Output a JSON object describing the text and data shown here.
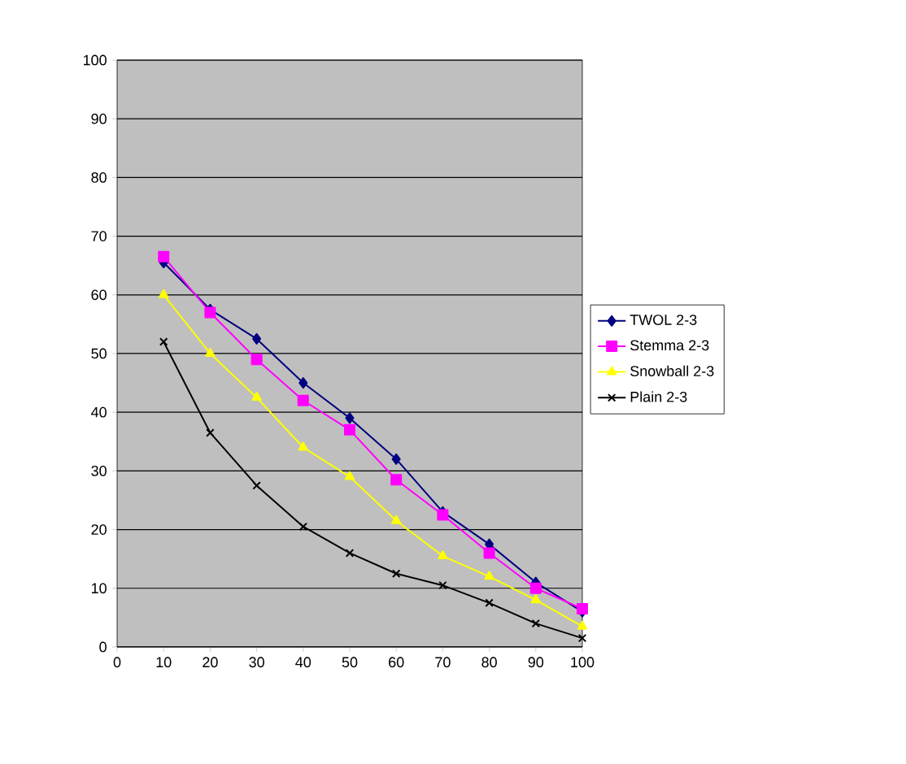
{
  "chart_data": {
    "type": "line",
    "x": [
      10,
      20,
      30,
      40,
      50,
      60,
      70,
      80,
      90,
      100
    ],
    "xlim": [
      0,
      100
    ],
    "ylim": [
      0,
      100
    ],
    "xticks": [
      0,
      10,
      20,
      30,
      40,
      50,
      60,
      70,
      80,
      90,
      100
    ],
    "yticks": [
      0,
      10,
      20,
      30,
      40,
      50,
      60,
      70,
      80,
      90,
      100
    ],
    "grid": "y",
    "legend": "right",
    "line_style": "solid",
    "series": [
      {
        "name": "TWOL 2-3",
        "color": "#000080",
        "marker": "diamond",
        "values": [
          65.5,
          57.5,
          52.5,
          45,
          39,
          32,
          23,
          17.5,
          11,
          6
        ]
      },
      {
        "name": "Stemma 2-3",
        "color": "#ff00ff",
        "marker": "square",
        "values": [
          66.5,
          57,
          49,
          42,
          37,
          28.5,
          22.5,
          16,
          10,
          6.5
        ]
      },
      {
        "name": "Snowball 2-3",
        "color": "#ffff00",
        "marker": "triangle",
        "values": [
          60,
          50,
          42.5,
          34,
          29,
          21.5,
          15.5,
          12,
          8,
          3.5
        ]
      },
      {
        "name": "Plain 2-3",
        "color": "#000000",
        "marker": "cross",
        "values": [
          52,
          36.5,
          27.5,
          20.5,
          16,
          12.5,
          10.5,
          7.5,
          4,
          1.5
        ]
      }
    ]
  }
}
